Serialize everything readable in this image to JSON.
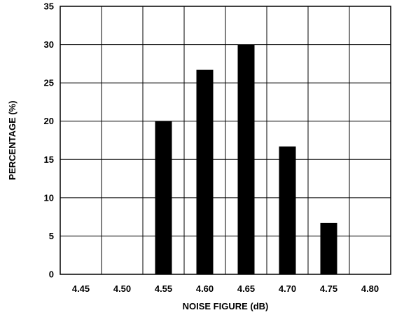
{
  "chart_data": {
    "type": "bar",
    "title": "",
    "xlabel": "NOISE FIGURE (dB)",
    "ylabel": "PERCENTAGE (%)",
    "categories": [
      "4.45",
      "4.50",
      "4.55",
      "4.60",
      "4.65",
      "4.70",
      "4.75",
      "4.80"
    ],
    "values": [
      0,
      0,
      20,
      26.7,
      30,
      16.7,
      6.7,
      0
    ],
    "ylim": [
      0,
      35
    ],
    "yticks": [
      "0",
      "5",
      "10",
      "15",
      "20",
      "25",
      "30",
      "35"
    ],
    "grid": true,
    "bar_color": "#000000"
  }
}
